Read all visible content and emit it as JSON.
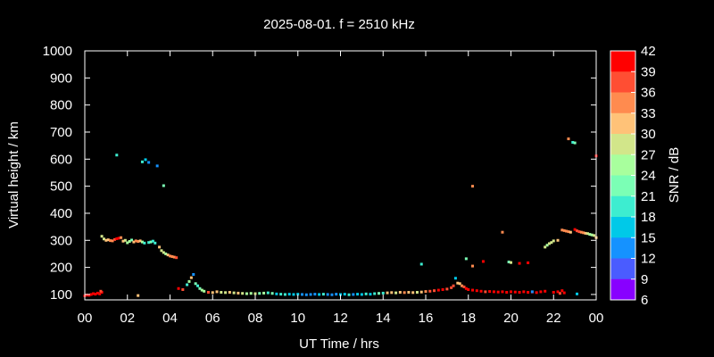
{
  "chart_data": {
    "type": "scatter",
    "title": "2025-08-01. f = 2510 kHz",
    "xlabel": "UT Time / hrs",
    "ylabel": "Virtual height / km",
    "xlim": [
      0,
      24
    ],
    "ylim": [
      80,
      1000
    ],
    "xticks": [
      "00",
      "02",
      "04",
      "06",
      "08",
      "10",
      "12",
      "14",
      "16",
      "18",
      "20",
      "22",
      "00"
    ],
    "yticks": [
      100,
      200,
      300,
      400,
      500,
      600,
      700,
      800,
      900,
      1000
    ],
    "colorbar": {
      "label": "SNR / dB",
      "range": [
        6,
        42
      ],
      "ticks": [
        42,
        39,
        36,
        33,
        30,
        27,
        24,
        21,
        18,
        15,
        12,
        9,
        6
      ],
      "colors": [
        "#ff0000",
        "#ff4e33",
        "#ff8b4f",
        "#ffc278",
        "#d2e68a",
        "#a8ff9d",
        "#7bffb5",
        "#3dedd0",
        "#00c9e8",
        "#1592ff",
        "#4a5cff",
        "#8800ff"
      ]
    },
    "series": [
      {
        "x": [
          0.0,
          0.1,
          0.2,
          0.3,
          0.4,
          0.5,
          0.6,
          0.7,
          0.8,
          0.75
        ],
        "y": [
          95,
          98,
          97,
          100,
          103,
          101,
          105,
          102,
          108,
          112
        ],
        "snr": [
          41,
          41,
          40,
          41,
          42,
          40,
          41,
          41,
          40,
          36
        ]
      },
      {
        "x": [
          0.8,
          0.9,
          1.0,
          1.1,
          1.2,
          1.3,
          1.4,
          1.5,
          1.6,
          1.7,
          1.8,
          1.9,
          2.0,
          2.1,
          2.2,
          2.3,
          2.4,
          2.5,
          2.6,
          2.7,
          2.8,
          3.0,
          3.1,
          3.2,
          3.3
        ],
        "y": [
          315,
          305,
          300,
          302,
          299,
          298,
          303,
          306,
          308,
          310,
          297,
          300,
          291,
          296,
          301,
          294,
          298,
          296,
          298,
          294,
          290,
          292,
          294,
          297,
          290
        ],
        "snr": [
          27,
          28,
          30,
          32,
          33,
          35,
          37,
          39,
          40,
          33,
          30,
          28,
          25,
          26,
          22,
          30,
          33,
          35,
          31,
          24,
          20,
          19,
          21,
          18,
          18
        ]
      },
      {
        "x": [
          3.5,
          3.6,
          3.7,
          3.8,
          3.9,
          4.0,
          4.1,
          4.2,
          4.3
        ],
        "y": [
          275,
          262,
          255,
          250,
          246,
          242,
          240,
          238,
          236
        ],
        "snr": [
          30,
          29,
          27,
          25,
          31,
          33,
          35,
          33,
          38
        ]
      },
      {
        "x": [
          1.5,
          2.7,
          2.85,
          3.0,
          3.4,
          3.7
        ],
        "y": [
          615,
          590,
          598,
          588,
          575,
          502
        ],
        "snr": [
          20,
          19,
          16,
          13,
          14,
          21
        ]
      },
      {
        "x": [
          4.4,
          4.6,
          4.8,
          4.9,
          5.0,
          5.1,
          5.2,
          5.3,
          5.4,
          5.5,
          5.6,
          5.8,
          6.0,
          6.2,
          6.4,
          6.6,
          6.8
        ],
        "y": [
          122,
          118,
          136,
          148,
          162,
          174,
          140,
          132,
          122,
          116,
          112,
          108,
          107,
          110,
          108,
          107,
          108
        ],
        "snr": [
          40,
          38,
          20,
          24,
          30,
          12,
          22,
          19,
          21,
          24,
          26,
          38,
          31,
          30,
          28,
          29,
          30
        ]
      },
      {
        "x": [
          7.0,
          7.2,
          7.4,
          7.6,
          7.8,
          8.0,
          8.2,
          8.4,
          8.6,
          8.8,
          9.0,
          9.2,
          9.4,
          9.6,
          9.8,
          10.0,
          10.2,
          10.4,
          10.6,
          10.8,
          11.0,
          11.2,
          11.4,
          11.6,
          11.8,
          12.0,
          12.2,
          12.4,
          12.6,
          12.8,
          13.0,
          13.2,
          13.4,
          13.6,
          13.8,
          14.0
        ],
        "y": [
          106,
          105,
          104,
          103,
          104,
          103,
          104,
          105,
          106,
          104,
          102,
          101,
          100,
          101,
          100,
          101,
          100,
          99,
          100,
          101,
          100,
          101,
          100,
          99,
          101,
          100,
          101,
          99,
          100,
          101,
          100,
          102,
          101,
          103,
          104,
          105
        ],
        "snr": [
          27,
          30,
          28,
          26,
          24,
          28,
          22,
          24,
          19,
          21,
          17,
          18,
          20,
          16,
          17,
          15,
          14,
          12,
          14,
          13,
          16,
          18,
          13,
          12,
          14,
          17,
          15,
          19,
          14,
          16,
          17,
          19,
          17,
          19,
          22,
          20
        ]
      },
      {
        "x": [
          14.2,
          14.4,
          14.6,
          14.8,
          15.0,
          15.2,
          15.4,
          15.6,
          15.8,
          16.0,
          16.2,
          16.4,
          16.6,
          16.8,
          17.0,
          17.2,
          17.3,
          17.4,
          17.5,
          17.6,
          17.7,
          17.8,
          17.9,
          18.0,
          18.2,
          18.4,
          18.6,
          18.8,
          19.0,
          19.2,
          19.4,
          19.6,
          19.8,
          20.0,
          20.2,
          20.4,
          20.6,
          20.8,
          21.0,
          21.2,
          21.4,
          21.6,
          22.0,
          22.2,
          22.4
        ],
        "y": [
          106,
          107,
          106,
          108,
          107,
          108,
          107,
          108,
          109,
          111,
          112,
          114,
          116,
          118,
          120,
          125,
          132,
          160,
          142,
          140,
          132,
          128,
          122,
          118,
          116,
          114,
          112,
          110,
          111,
          110,
          109,
          110,
          108,
          110,
          109,
          108,
          110,
          108,
          109,
          107,
          110,
          112,
          108,
          110,
          114
        ],
        "snr": [
          30,
          32,
          28,
          31,
          33,
          30,
          32,
          29,
          32,
          34,
          36,
          38,
          39,
          40,
          38,
          36,
          37,
          16,
          30,
          32,
          35,
          37,
          39,
          40,
          41,
          40,
          39,
          38,
          40,
          41,
          39,
          40,
          41,
          40,
          39,
          41,
          40,
          39,
          40,
          41,
          39,
          40,
          41,
          39,
          40
        ]
      },
      {
        "x": [
          15.8,
          18.2,
          18.7,
          19.6,
          19.9,
          20.0,
          20.4,
          20.8
        ],
        "y": [
          212,
          500,
          222,
          330,
          220,
          218,
          215,
          217
        ],
        "snr": [
          19,
          33,
          40,
          34,
          22,
          28,
          41,
          42
        ]
      },
      {
        "x": [
          17.9,
          18.2,
          2.5
        ],
        "y": [
          232,
          205,
          96
        ],
        "snr": [
          21,
          33,
          31
        ]
      },
      {
        "x": [
          21.6,
          21.7,
          21.8,
          21.9,
          22.0,
          22.2,
          22.4,
          22.5,
          22.6,
          22.7,
          22.8
        ],
        "y": [
          275,
          282,
          288,
          292,
          298,
          300,
          338,
          336,
          334,
          332,
          330
        ],
        "snr": [
          28,
          26,
          27,
          29,
          27,
          30,
          33,
          35,
          34,
          33,
          31
        ]
      },
      {
        "x": [
          23.0,
          23.1,
          23.2,
          23.3,
          23.4,
          23.5,
          23.6,
          23.7,
          23.8,
          23.9,
          24.0
        ],
        "y": [
          340,
          335,
          332,
          330,
          328,
          326,
          325,
          322,
          320,
          318,
          310
        ],
        "snr": [
          42,
          38,
          36,
          34,
          33,
          30,
          28,
          26,
          25,
          27,
          30
        ]
      },
      {
        "x": [
          22.7,
          22.9,
          23.0,
          24.0,
          22.3,
          22.5,
          21.0,
          23.1
        ],
        "y": [
          675,
          662,
          660,
          612,
          104,
          106,
          110,
          102
        ],
        "snr": [
          33,
          19,
          21,
          40,
          37,
          40,
          13,
          15
        ]
      }
    ]
  }
}
